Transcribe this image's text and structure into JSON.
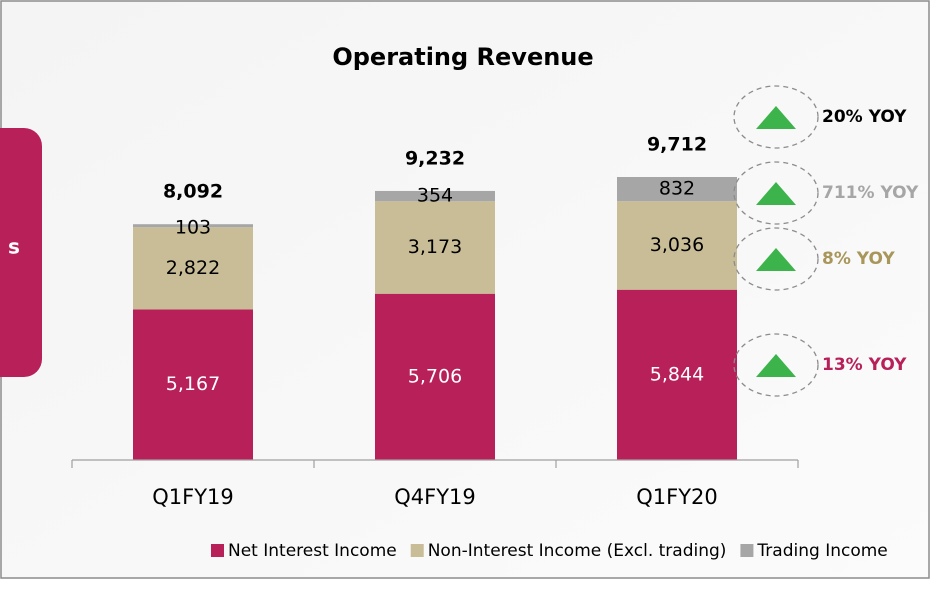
{
  "chart_data": {
    "type": "stacked-bar",
    "title": "Operating Revenue",
    "side_label": "s",
    "categories": [
      "Q1FY19",
      "Q4FY19",
      "Q1FY20"
    ],
    "series": [
      {
        "name": "Net Interest Income",
        "color": "#b8205a",
        "label_color": "#ffffff",
        "values": [
          5167,
          5706,
          5844
        ],
        "value_labels": [
          "5,167",
          "5,706",
          "5,844"
        ]
      },
      {
        "name": "Non-Interest Income (Excl. trading)",
        "color": "#c8bd97",
        "label_color": "#000000",
        "values": [
          2822,
          3173,
          3036
        ],
        "value_labels": [
          "2,822",
          "3,173",
          "3,036"
        ]
      },
      {
        "name": "Trading Income",
        "color": "#a6a6a6",
        "label_color": "#000000",
        "values": [
          103,
          354,
          832
        ],
        "value_labels": [
          "103",
          "354",
          "832"
        ]
      }
    ],
    "totals": {
      "values": [
        8092,
        9232,
        9712
      ],
      "value_labels": [
        "8,092",
        "9,232",
        "9,712"
      ]
    },
    "annotations": [
      {
        "text": "20% YOY",
        "color": "#000000"
      },
      {
        "text": "711% YOY",
        "color": "#a6a6a6"
      },
      {
        "text": "8% YOY",
        "color": "#a8965a"
      },
      {
        "text": "13% YOY",
        "color": "#b8205a"
      }
    ],
    "legend": "bottom"
  }
}
